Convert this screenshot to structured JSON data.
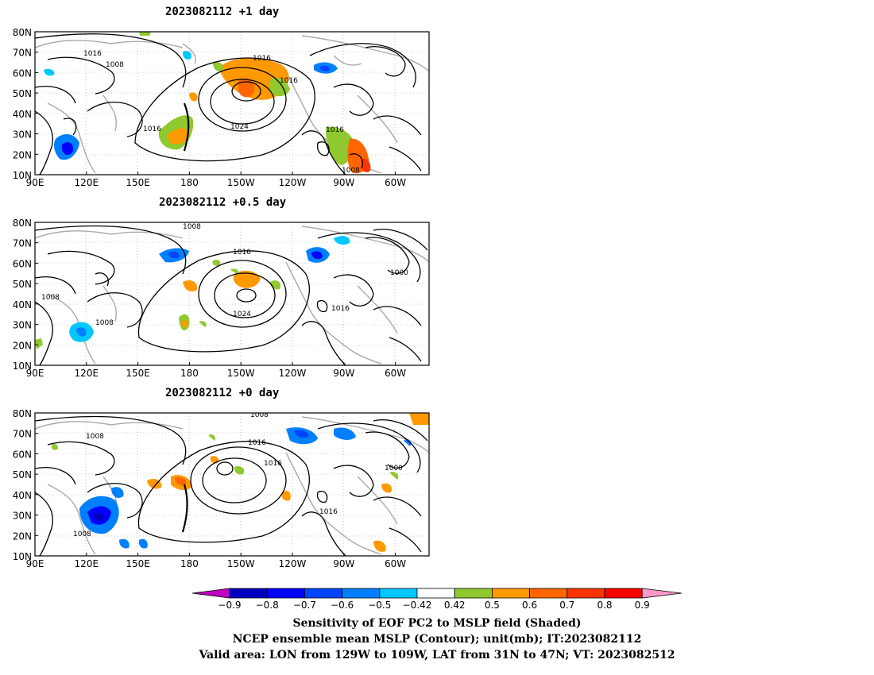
{
  "panels": [
    {
      "title": "2023082112  +1 day",
      "contour_labels": [
        "1016",
        "1008",
        "1016",
        "1016",
        "1016",
        "1024",
        "1016",
        "1008"
      ]
    },
    {
      "title": "2023082112  +0.5 day",
      "contour_labels": [
        "1008",
        "1016",
        "1000",
        "1008",
        "1008",
        "1024",
        "1016"
      ]
    },
    {
      "title": "2023082112  +0 day",
      "contour_labels": [
        "1008",
        "1008",
        "1016",
        "1016",
        "1000",
        "1016",
        "1008"
      ]
    }
  ],
  "axes": {
    "lat_ticks": [
      "80N",
      "70N",
      "60N",
      "50N",
      "40N",
      "30N",
      "20N",
      "10N"
    ],
    "lon_ticks": [
      "90E",
      "120E",
      "150E",
      "180",
      "150W",
      "120W",
      "90W",
      "60W"
    ]
  },
  "colorbar": {
    "labels": [
      "-0.9",
      "-0.8",
      "-0.7",
      "-0.6",
      "-0.5",
      "-0.42",
      "0.42",
      "0.5",
      "0.6",
      "0.7",
      "0.8",
      "0.9"
    ],
    "colors": [
      "#c000c0",
      "#0000c0",
      "#0000ff",
      "#0044ff",
      "#0080ff",
      "#00c8ff",
      "#ffffff",
      "#90c830",
      "#ff9900",
      "#ff6600",
      "#ff3300",
      "#ff0000",
      "#ff99cc"
    ]
  },
  "caption": {
    "line1": "Sensitivity of EOF PC2 to MSLP field (Shaded)",
    "line2": "NCEP ensemble mean MSLP (Contour); unit(mb); IT:2023082112",
    "line3": "Valid area: LON from 129W to 109W, LAT from 31N to 47N; VT: 2023082512"
  }
}
